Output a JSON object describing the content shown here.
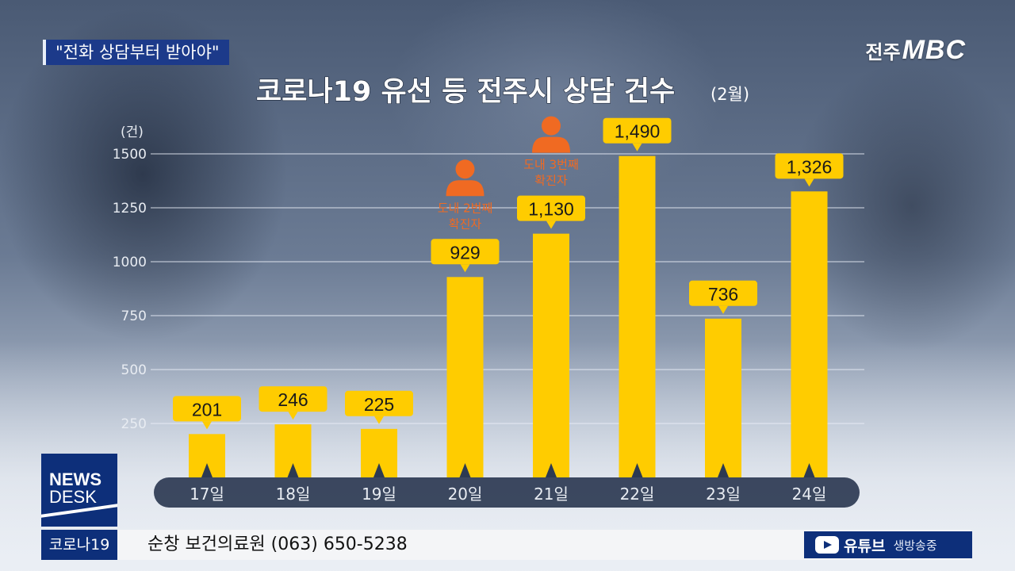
{
  "topic": "\"전화 상담부터 받아야\"",
  "brand": {
    "city": "전주",
    "name": "MBC"
  },
  "newsdesk": {
    "line1": "NEWS",
    "line2": "DESK"
  },
  "ticker": {
    "tag": "코로나19",
    "text": "순창 보건의료원 (063) 650-5238"
  },
  "youtube": {
    "label": "유튜브",
    "live": "생방송중"
  },
  "colors": {
    "bar": "#ffcc00",
    "label_box": "#ffcc00",
    "person": "#f06a22",
    "axis_band": "#2c3a52"
  },
  "icons": [
    "person-icon",
    "youtube-play-icon"
  ],
  "chart_data": {
    "type": "bar",
    "title": "코로나19 유선 등 전주시 상담 건수",
    "subtitle": "(2월)",
    "ylabel": "(건)",
    "ylim": [
      0,
      1600
    ],
    "yticks": [
      "250",
      "500",
      "750",
      "1000",
      "1250",
      "1500"
    ],
    "categories": [
      "17일",
      "18일",
      "19일",
      "20일",
      "21일",
      "22일",
      "23일",
      "24일"
    ],
    "values": [
      201,
      246,
      225,
      929,
      1130,
      1490,
      736,
      1326
    ],
    "value_labels": [
      "201",
      "246",
      "225",
      "929",
      "1,130",
      "1,490",
      "736",
      "1,326"
    ],
    "annotations": [
      {
        "category": "20일",
        "lines": [
          "도내 2번째",
          "확진자"
        ],
        "icon": "person-icon"
      },
      {
        "category": "21일",
        "lines": [
          "도내 3번째",
          "확진자"
        ],
        "icon": "person-icon"
      }
    ]
  }
}
